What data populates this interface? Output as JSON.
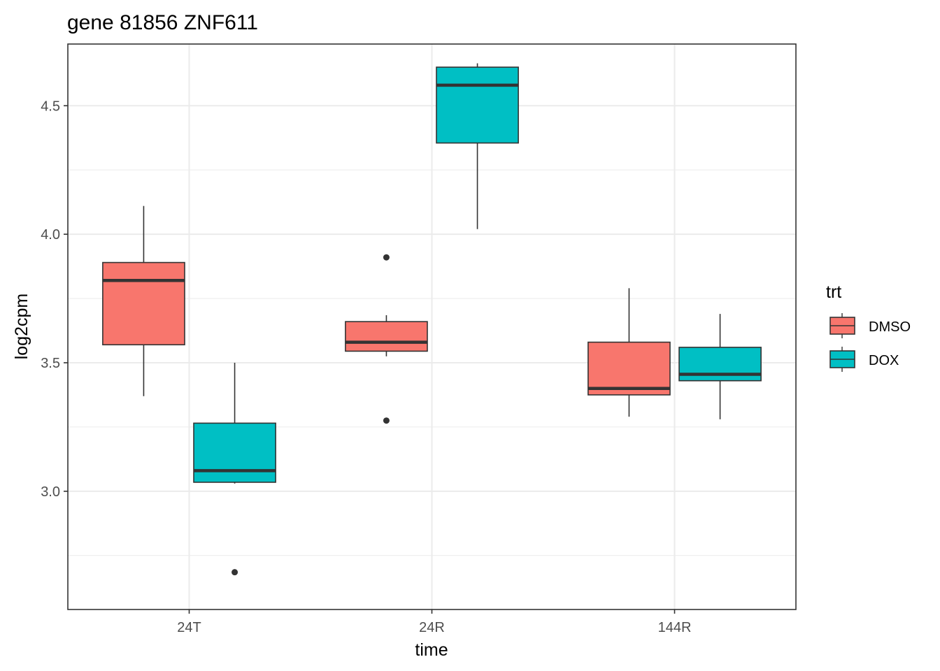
{
  "chart_data": {
    "type": "boxplot",
    "title": "gene 81856 ZNF611",
    "xlabel": "time",
    "ylabel": "log2cpm",
    "categories": [
      "24T",
      "24R",
      "144R"
    ],
    "ylim": [
      2.54,
      4.74
    ],
    "yticks": [
      3.0,
      3.5,
      4.0,
      4.5
    ],
    "ytick_labels": [
      "3.0",
      "3.5",
      "4.0",
      "4.5"
    ],
    "grid": true,
    "legend": {
      "title": "trt",
      "position": "right",
      "entries": [
        "DMSO",
        "DOX"
      ]
    },
    "series": [
      {
        "name": "DMSO",
        "color": "#F8766D",
        "boxes": [
          {
            "category": "24T",
            "whisker_low": 3.37,
            "q1": 3.57,
            "median": 3.82,
            "q3": 3.89,
            "whisker_high": 4.11,
            "outliers": []
          },
          {
            "category": "24R",
            "whisker_low": 3.525,
            "q1": 3.545,
            "median": 3.58,
            "q3": 3.66,
            "whisker_high": 3.685,
            "outliers": [
              3.91,
              3.275
            ]
          },
          {
            "category": "144R",
            "whisker_low": 3.29,
            "q1": 3.375,
            "median": 3.4,
            "q3": 3.58,
            "whisker_high": 3.79,
            "outliers": []
          }
        ]
      },
      {
        "name": "DOX",
        "color": "#00BFC4",
        "boxes": [
          {
            "category": "24T",
            "whisker_low": 3.03,
            "q1": 3.035,
            "median": 3.08,
            "q3": 3.265,
            "whisker_high": 3.5,
            "outliers": [
              2.685
            ]
          },
          {
            "category": "24R",
            "whisker_low": 4.02,
            "q1": 4.355,
            "median": 4.58,
            "q3": 4.65,
            "whisker_high": 4.665,
            "outliers": []
          },
          {
            "category": "144R",
            "whisker_low": 3.28,
            "q1": 3.43,
            "median": 3.455,
            "q3": 3.56,
            "whisker_high": 3.69,
            "outliers": []
          }
        ]
      }
    ]
  }
}
